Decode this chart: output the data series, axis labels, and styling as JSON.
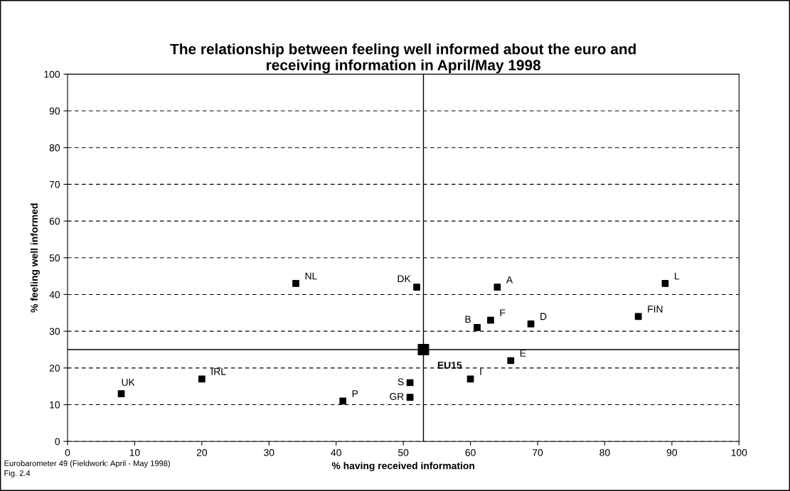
{
  "chart_data": {
    "type": "scatter",
    "title": "The relationship between feeling well informed about the euro and\nreceiving information in April/May 1998",
    "xlabel": "% having received information",
    "ylabel": "% feeling well informed",
    "series": [
      {
        "color": "#000000",
        "x": [
          8,
          20,
          34,
          41,
          51,
          51,
          52,
          60,
          61,
          63,
          64,
          66,
          69,
          85,
          89
        ],
        "values": [
          13,
          17,
          43,
          11,
          16,
          12,
          42,
          17,
          31,
          33,
          42,
          22,
          32,
          34,
          43
        ]
      },
      {
        "color": "#000000",
        "x": [
          53
        ],
        "values": [
          25
        ]
      }
    ],
    "annotations": [
      {
        "text": "UK",
        "x": 8,
        "y": 13
      },
      {
        "text": "IRL",
        "x": 20,
        "y": 17
      },
      {
        "text": "NL",
        "x": 34,
        "y": 43
      },
      {
        "text": "P",
        "x": 41,
        "y": 11
      },
      {
        "text": "S",
        "x": 51,
        "y": 16
      },
      {
        "text": "GR",
        "x": 51,
        "y": 12
      },
      {
        "text": "DK",
        "x": 52,
        "y": 42
      },
      {
        "text": "I",
        "x": 60,
        "y": 17
      },
      {
        "text": "B",
        "x": 61,
        "y": 31
      },
      {
        "text": "F",
        "x": 63,
        "y": 33
      },
      {
        "text": "A",
        "x": 64,
        "y": 42
      },
      {
        "text": "E",
        "x": 66,
        "y": 22
      },
      {
        "text": "D",
        "x": 69,
        "y": 32
      },
      {
        "text": "FIN",
        "x": 85,
        "y": 34
      },
      {
        "text": "L",
        "x": 89,
        "y": 43
      },
      {
        "text": "EU15",
        "x": 53,
        "y": 25
      },
      "Eurobarometer 49 (Fieldwork: April - May 1998)",
      "Fig. 2.4"
    ],
    "ref_lines": [
      {
        "axis": "x",
        "value": 53,
        "color": "#000000",
        "line_style": "solid"
      },
      {
        "axis": "y",
        "value": 25,
        "color": "#000000",
        "line_style": "solid"
      }
    ],
    "xlim": [
      0,
      100
    ],
    "xticks": [
      0,
      10,
      20,
      30,
      40,
      50,
      60,
      70,
      80,
      90,
      100
    ],
    "ylim": [
      0,
      100
    ],
    "yticks": [
      0,
      10,
      20,
      30,
      40,
      50,
      60,
      70,
      80,
      90,
      100
    ],
    "grid": "y",
    "marker": "square",
    "legend": false
  }
}
